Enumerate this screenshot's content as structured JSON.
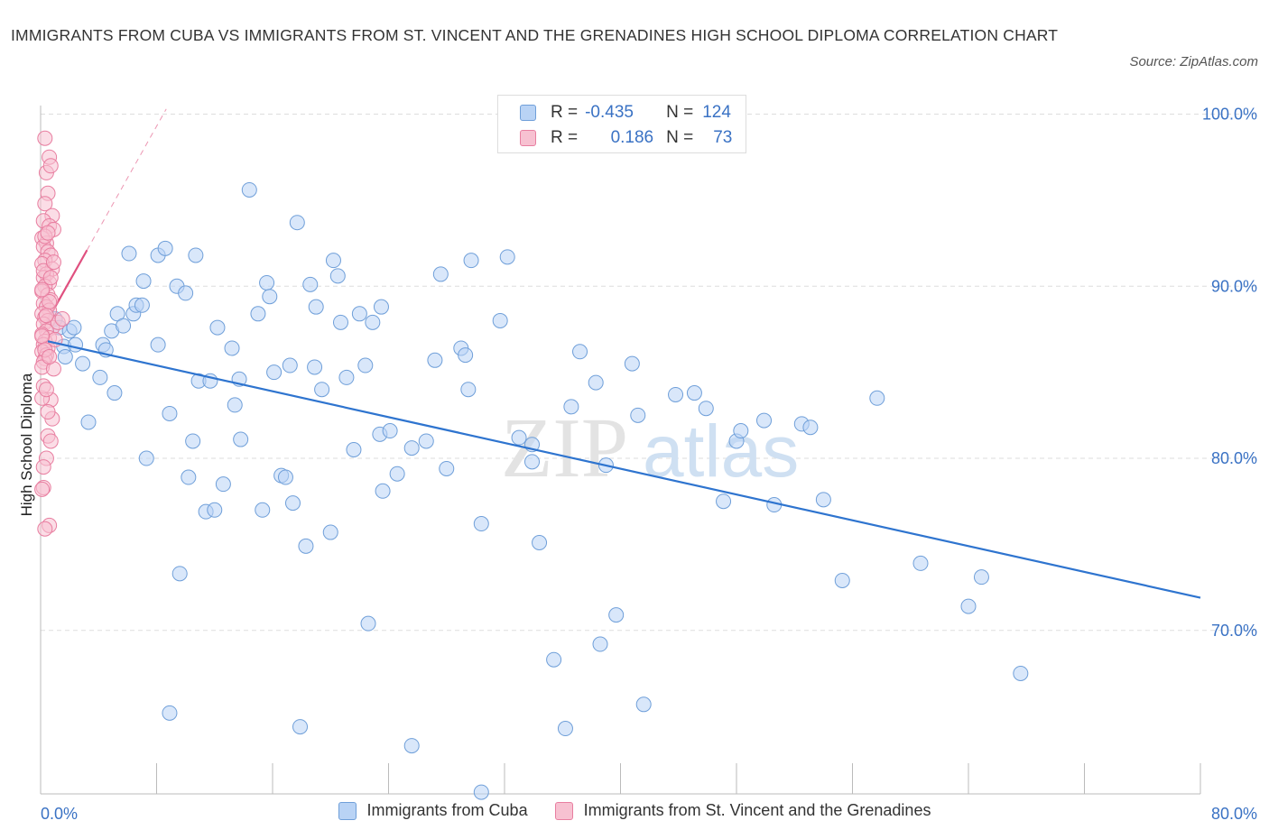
{
  "title": "IMMIGRANTS FROM CUBA VS IMMIGRANTS FROM ST. VINCENT AND THE GRENADINES HIGH SCHOOL DIPLOMA CORRELATION CHART",
  "source": "Source: ZipAtlas.com",
  "watermark": {
    "zip": "ZIP",
    "atlas": "atlas"
  },
  "legend_stats": [
    {
      "r_label": "R =",
      "r_value": "-0.435",
      "n_label": "N =",
      "n_value": "124"
    },
    {
      "r_label": "R =",
      "r_value": "0.186",
      "n_label": "N =",
      "n_value": "73"
    }
  ],
  "colors": {
    "blue_fill": "#b9d3f5",
    "blue_stroke": "#6f9fd9",
    "blue_line": "#2e74cf",
    "pink_fill": "#f7c1d1",
    "pink_stroke": "#e87ea0",
    "pink_line": "#e0507f",
    "tick_text": "#3a72c4",
    "grid": "#dedede"
  },
  "chart_data": {
    "type": "scatter",
    "title": "IMMIGRANTS FROM CUBA VS IMMIGRANTS FROM ST. VINCENT AND THE GRENADINES HIGH SCHOOL DIPLOMA CORRELATION CHART",
    "xlabel": "",
    "ylabel": "High School Diploma",
    "xlim": [
      0,
      80
    ],
    "ylim": [
      60.5,
      100.5
    ],
    "x_tick_labels": [
      "0.0%",
      "80.0%"
    ],
    "y_ticks": [
      70,
      80,
      90,
      100
    ],
    "y_tick_labels": [
      "70.0%",
      "80.0%",
      "90.0%",
      "100.0%"
    ],
    "grid": true,
    "legend_position": "bottom",
    "series": [
      {
        "name": "Immigrants from Cuba",
        "r": -0.435,
        "n": 124,
        "trend": {
          "x": [
            0.5,
            80
          ],
          "y": [
            86.8,
            71.9
          ]
        },
        "points": [
          [
            1.0,
            88.1
          ],
          [
            1.3,
            87.6
          ],
          [
            1.6,
            86.5
          ],
          [
            1.7,
            85.9
          ],
          [
            2.0,
            87.4
          ],
          [
            2.3,
            87.6
          ],
          [
            2.4,
            86.6
          ],
          [
            2.9,
            85.5
          ],
          [
            3.3,
            82.1
          ],
          [
            4.1,
            84.7
          ],
          [
            4.3,
            86.6
          ],
          [
            4.5,
            86.3
          ],
          [
            4.9,
            87.4
          ],
          [
            5.1,
            83.8
          ],
          [
            5.3,
            88.4
          ],
          [
            5.7,
            87.7
          ],
          [
            6.1,
            91.9
          ],
          [
            6.4,
            88.4
          ],
          [
            6.6,
            88.9
          ],
          [
            7.0,
            88.9
          ],
          [
            7.1,
            90.3
          ],
          [
            7.3,
            80.0
          ],
          [
            8.1,
            86.6
          ],
          [
            8.1,
            91.8
          ],
          [
            8.6,
            92.2
          ],
          [
            8.9,
            82.6
          ],
          [
            9.4,
            90.0
          ],
          [
            9.6,
            73.3
          ],
          [
            10.0,
            89.6
          ],
          [
            10.2,
            78.9
          ],
          [
            10.5,
            81.0
          ],
          [
            10.7,
            91.8
          ],
          [
            10.9,
            84.5
          ],
          [
            11.4,
            76.9
          ],
          [
            11.7,
            84.5
          ],
          [
            12.0,
            77.0
          ],
          [
            12.2,
            87.6
          ],
          [
            12.6,
            78.5
          ],
          [
            13.2,
            86.4
          ],
          [
            13.4,
            83.1
          ],
          [
            13.7,
            84.6
          ],
          [
            13.8,
            81.1
          ],
          [
            14.4,
            95.6
          ],
          [
            15.0,
            88.4
          ],
          [
            15.3,
            77.0
          ],
          [
            15.6,
            90.2
          ],
          [
            15.8,
            89.4
          ],
          [
            16.1,
            85.0
          ],
          [
            16.6,
            79.0
          ],
          [
            16.9,
            78.9
          ],
          [
            17.2,
            85.4
          ],
          [
            17.4,
            77.4
          ],
          [
            17.7,
            93.7
          ],
          [
            18.3,
            74.9
          ],
          [
            18.6,
            90.1
          ],
          [
            18.9,
            85.3
          ],
          [
            19.0,
            88.8
          ],
          [
            19.4,
            84.0
          ],
          [
            20.0,
            75.7
          ],
          [
            20.2,
            91.5
          ],
          [
            20.5,
            90.6
          ],
          [
            20.7,
            87.9
          ],
          [
            21.1,
            84.7
          ],
          [
            21.6,
            80.5
          ],
          [
            22.0,
            88.4
          ],
          [
            22.4,
            85.4
          ],
          [
            22.6,
            70.4
          ],
          [
            22.9,
            87.9
          ],
          [
            23.4,
            81.4
          ],
          [
            23.5,
            88.8
          ],
          [
            23.6,
            78.1
          ],
          [
            24.1,
            81.6
          ],
          [
            24.6,
            79.1
          ],
          [
            25.6,
            80.6
          ],
          [
            26.6,
            81.0
          ],
          [
            27.2,
            85.7
          ],
          [
            27.6,
            90.7
          ],
          [
            28.0,
            79.4
          ],
          [
            29.0,
            86.4
          ],
          [
            29.3,
            86.0
          ],
          [
            29.5,
            84.0
          ],
          [
            29.7,
            91.5
          ],
          [
            30.4,
            76.2
          ],
          [
            31.7,
            88.0
          ],
          [
            32.2,
            91.7
          ],
          [
            33.0,
            81.2
          ],
          [
            33.9,
            80.8
          ],
          [
            33.9,
            79.8
          ],
          [
            34.4,
            75.1
          ],
          [
            35.4,
            68.3
          ],
          [
            36.6,
            83.0
          ],
          [
            37.2,
            86.2
          ],
          [
            38.3,
            84.4
          ],
          [
            38.6,
            69.2
          ],
          [
            39.0,
            79.6
          ],
          [
            39.7,
            70.9
          ],
          [
            40.8,
            85.5
          ],
          [
            41.2,
            82.5
          ],
          [
            41.6,
            65.7
          ],
          [
            43.8,
            83.7
          ],
          [
            45.1,
            83.8
          ],
          [
            45.9,
            82.9
          ],
          [
            47.1,
            77.5
          ],
          [
            48.0,
            81.0
          ],
          [
            48.3,
            81.6
          ],
          [
            49.9,
            82.2
          ],
          [
            50.6,
            77.3
          ],
          [
            52.5,
            82.0
          ],
          [
            53.1,
            81.8
          ],
          [
            54.0,
            77.6
          ],
          [
            55.3,
            72.9
          ],
          [
            57.7,
            83.5
          ],
          [
            60.7,
            73.9
          ],
          [
            64.0,
            71.4
          ],
          [
            64.9,
            73.1
          ],
          [
            67.6,
            67.5
          ],
          [
            8.9,
            65.2
          ],
          [
            17.9,
            64.4
          ],
          [
            25.6,
            63.3
          ],
          [
            36.2,
            64.3
          ],
          [
            30.4,
            60.6
          ]
        ]
      },
      {
        "name": "Immigrants from St. Vincent and the Grenadines",
        "r": 0.186,
        "n": 73,
        "trend": {
          "x": [
            0.0,
            3.2
          ],
          "y": [
            87.3,
            92.1
          ]
        },
        "points": [
          [
            0.3,
            98.6
          ],
          [
            0.6,
            97.5
          ],
          [
            0.4,
            96.6
          ],
          [
            0.7,
            97.0
          ],
          [
            0.5,
            95.4
          ],
          [
            0.3,
            94.8
          ],
          [
            0.8,
            94.1
          ],
          [
            0.2,
            93.8
          ],
          [
            0.6,
            93.5
          ],
          [
            0.9,
            93.3
          ],
          [
            0.1,
            92.8
          ],
          [
            0.4,
            92.5
          ],
          [
            0.2,
            92.3
          ],
          [
            0.5,
            92.0
          ],
          [
            0.7,
            91.8
          ],
          [
            0.3,
            91.5
          ],
          [
            0.1,
            91.3
          ],
          [
            0.8,
            91.0
          ],
          [
            0.4,
            90.7
          ],
          [
            0.2,
            90.5
          ],
          [
            0.6,
            90.2
          ],
          [
            0.3,
            90.0
          ],
          [
            0.1,
            89.7
          ],
          [
            0.5,
            89.5
          ],
          [
            0.7,
            89.2
          ],
          [
            0.2,
            89.0
          ],
          [
            0.4,
            88.8
          ],
          [
            0.6,
            88.6
          ],
          [
            0.1,
            88.4
          ],
          [
            0.3,
            88.2
          ],
          [
            0.5,
            88.0
          ],
          [
            0.2,
            87.8
          ],
          [
            0.8,
            87.6
          ],
          [
            0.4,
            87.4
          ],
          [
            0.1,
            87.2
          ],
          [
            0.6,
            87.0
          ],
          [
            0.3,
            86.8
          ],
          [
            0.2,
            86.6
          ],
          [
            0.5,
            86.4
          ],
          [
            0.1,
            86.2
          ],
          [
            0.4,
            86.0
          ],
          [
            0.3,
            85.8
          ],
          [
            0.2,
            85.6
          ],
          [
            0.1,
            85.3
          ],
          [
            0.7,
            83.4
          ],
          [
            0.8,
            82.3
          ],
          [
            0.1,
            83.5
          ],
          [
            0.5,
            81.3
          ],
          [
            0.4,
            80.0
          ],
          [
            0.7,
            81.0
          ],
          [
            0.2,
            78.3
          ],
          [
            0.6,
            76.1
          ],
          [
            0.3,
            75.9
          ],
          [
            0.1,
            78.2
          ],
          [
            1.2,
            87.9
          ],
          [
            1.5,
            88.1
          ],
          [
            1.0,
            86.9
          ],
          [
            0.9,
            85.2
          ],
          [
            0.6,
            89.1
          ],
          [
            0.3,
            92.9
          ],
          [
            0.5,
            93.1
          ],
          [
            0.2,
            90.9
          ],
          [
            0.4,
            88.3
          ],
          [
            0.1,
            87.1
          ],
          [
            0.3,
            86.3
          ],
          [
            0.6,
            85.9
          ],
          [
            0.2,
            84.2
          ],
          [
            0.4,
            84.0
          ],
          [
            0.5,
            82.7
          ],
          [
            0.2,
            79.5
          ],
          [
            0.7,
            90.5
          ],
          [
            0.9,
            91.4
          ],
          [
            0.1,
            89.8
          ]
        ]
      }
    ]
  }
}
